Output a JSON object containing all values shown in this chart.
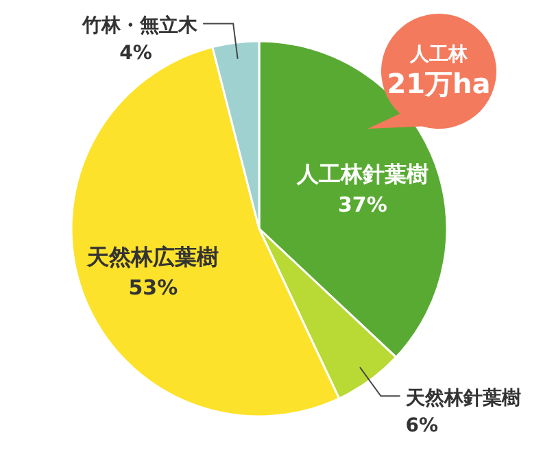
{
  "chart_data": {
    "type": "pie",
    "categories": [
      "人工林針葉樹",
      "天然林針葉樹",
      "天然林広葉樹",
      "竹林・無立木"
    ],
    "values": [
      37,
      6,
      53,
      4
    ],
    "colors": [
      "#59aa32",
      "#b9d934",
      "#fce22b",
      "#9ed1cf"
    ],
    "value_labels": [
      "37%",
      "6%",
      "53%",
      "4%"
    ],
    "annotations": [
      "人工林\n21万ha"
    ]
  }
}
